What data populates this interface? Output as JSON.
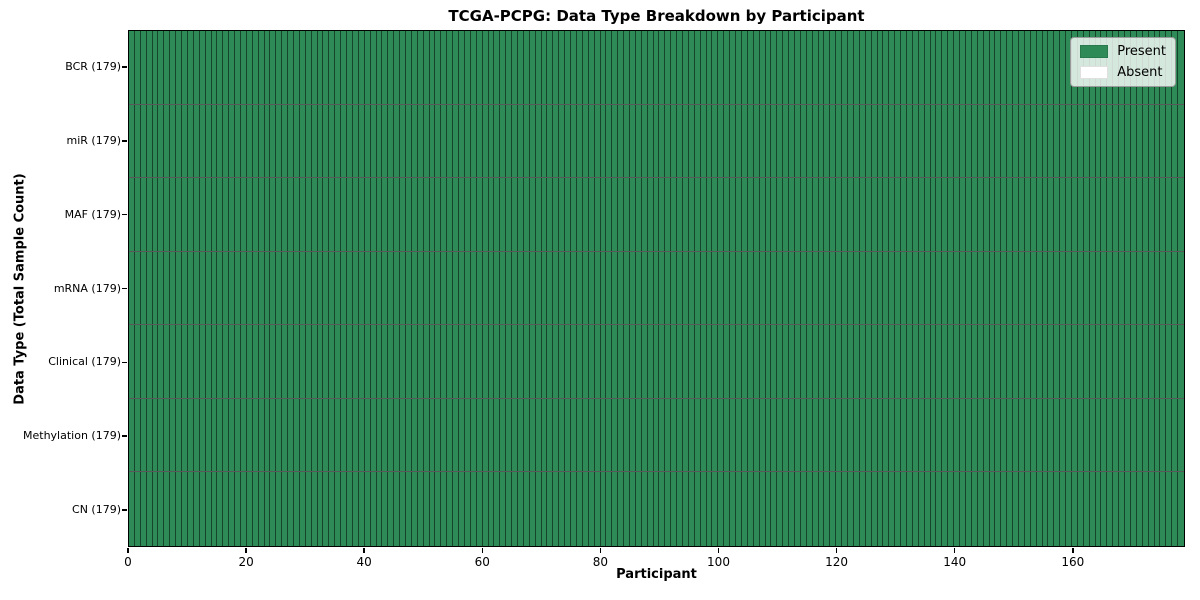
{
  "chart_data": {
    "type": "heatmap",
    "title": "TCGA-PCPG: Data Type Breakdown by Participant",
    "xlabel": "Participant",
    "ylabel": "Data Type (Total Sample Count)",
    "x_ticks": [
      0,
      20,
      40,
      60,
      80,
      100,
      120,
      140,
      160
    ],
    "x_range": [
      0,
      179
    ],
    "n_participants": 179,
    "rows": [
      {
        "label": "BCR (179)",
        "present_count": 179
      },
      {
        "label": "miR (179)",
        "present_count": 179
      },
      {
        "label": "MAF (179)",
        "present_count": 179
      },
      {
        "label": "mRNA (179)",
        "present_count": 179
      },
      {
        "label": "Clinical (179)",
        "present_count": 179
      },
      {
        "label": "Methylation (179)",
        "present_count": 179
      },
      {
        "label": "CN (179)",
        "present_count": 179
      }
    ],
    "colors": {
      "present": "#2e8b57",
      "absent": "#ffffff",
      "cell_edge": "rgba(0,0,0,0.5)",
      "background": "#ffffff"
    },
    "legend": {
      "position": "upper-right",
      "entries": [
        {
          "label": "Present",
          "color": "#2e8b57"
        },
        {
          "label": "Absent",
          "color": "#ffffff"
        }
      ]
    },
    "grid": "cell-borders"
  }
}
